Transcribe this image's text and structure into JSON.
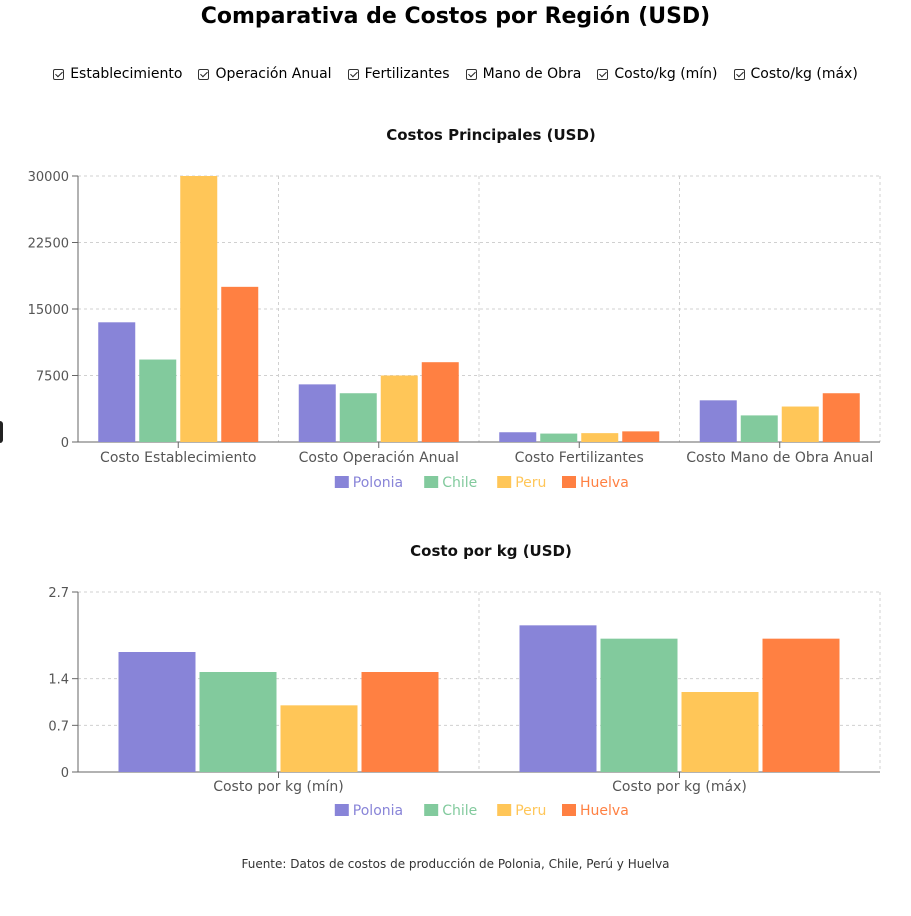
{
  "title": "Comparativa de Costos por Región (USD)",
  "filters": [
    {
      "label": "Establecimiento",
      "checked": true
    },
    {
      "label": "Operación Anual",
      "checked": true
    },
    {
      "label": "Fertilizantes",
      "checked": true
    },
    {
      "label": "Mano de Obra",
      "checked": true
    },
    {
      "label": "Costo/kg (mín)",
      "checked": true
    },
    {
      "label": "Costo/kg (máx)",
      "checked": true
    }
  ],
  "chart_data": [
    {
      "type": "bar",
      "title": "Costos Principales (USD)",
      "categories": [
        "Costo Establecimiento",
        "Costo Operación Anual",
        "Costo Fertilizantes",
        "Costo Mano de Obra Anual"
      ],
      "series": [
        {
          "name": "Polonia",
          "color": "#8884d8",
          "values": [
            13500,
            6500,
            1100,
            4700
          ]
        },
        {
          "name": "Chile",
          "color": "#82ca9d",
          "values": [
            9300,
            5500,
            950,
            3000
          ]
        },
        {
          "name": "Peru",
          "color": "#ffc658",
          "values": [
            30000,
            7500,
            1000,
            4000
          ]
        },
        {
          "name": "Huelva",
          "color": "#ff8042",
          "values": [
            17500,
            9000,
            1200,
            5500
          ]
        }
      ],
      "yticks": [
        0,
        7500,
        15000,
        22500,
        30000
      ],
      "ylim": [
        0,
        30000
      ],
      "grid": true,
      "legend_position": "bottom"
    },
    {
      "type": "bar",
      "title": "Costo por kg (USD)",
      "categories": [
        "Costo por kg (mín)",
        "Costo por kg (máx)"
      ],
      "series": [
        {
          "name": "Polonia",
          "color": "#8884d8",
          "values": [
            1.8,
            2.2
          ]
        },
        {
          "name": "Chile",
          "color": "#82ca9d",
          "values": [
            1.5,
            2.0
          ]
        },
        {
          "name": "Peru",
          "color": "#ffc658",
          "values": [
            1.0,
            1.2
          ]
        },
        {
          "name": "Huelva",
          "color": "#ff8042",
          "values": [
            1.5,
            2.0
          ]
        }
      ],
      "yticks": [
        0,
        0.7,
        1.4,
        2.7
      ],
      "ylim": [
        0,
        2.7
      ],
      "grid": true,
      "legend_position": "bottom"
    }
  ],
  "source": "Fuente: Datos de costos de producción de Polonia, Chile, Perú y Huelva"
}
